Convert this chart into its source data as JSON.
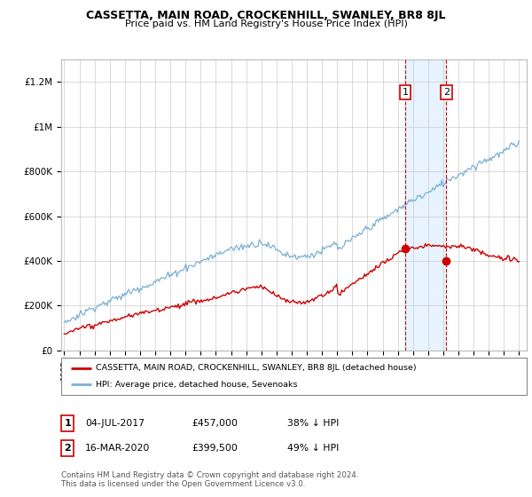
{
  "title": "CASSETTA, MAIN ROAD, CROCKENHILL, SWANLEY, BR8 8JL",
  "subtitle": "Price paid vs. HM Land Registry's House Price Index (HPI)",
  "ylim": [
    0,
    1300000
  ],
  "yticks": [
    0,
    200000,
    400000,
    600000,
    800000,
    1000000,
    1200000
  ],
  "ytick_labels": [
    "£0",
    "£200K",
    "£400K",
    "£600K",
    "£800K",
    "£1M",
    "£1.2M"
  ],
  "hpi_color": "#7ab0d4",
  "price_color": "#cc0000",
  "sale1_year": 2017.5,
  "sale1_price": 457000,
  "sale2_year": 2020.2,
  "sale2_price": 399500,
  "legend_label_red": "CASSETTA, MAIN ROAD, CROCKENHILL, SWANLEY, BR8 8JL (detached house)",
  "legend_label_blue": "HPI: Average price, detached house, Sevenoaks",
  "table_row1": [
    "1",
    "04-JUL-2017",
    "£457,000",
    "38% ↓ HPI"
  ],
  "table_row2": [
    "2",
    "16-MAR-2020",
    "£399,500",
    "49% ↓ HPI"
  ],
  "footer": "Contains HM Land Registry data © Crown copyright and database right 2024.\nThis data is licensed under the Open Government Licence v3.0.",
  "background_color": "#ffffff",
  "grid_color": "#cccccc",
  "xstart_year": 1995,
  "xend_year": 2025
}
